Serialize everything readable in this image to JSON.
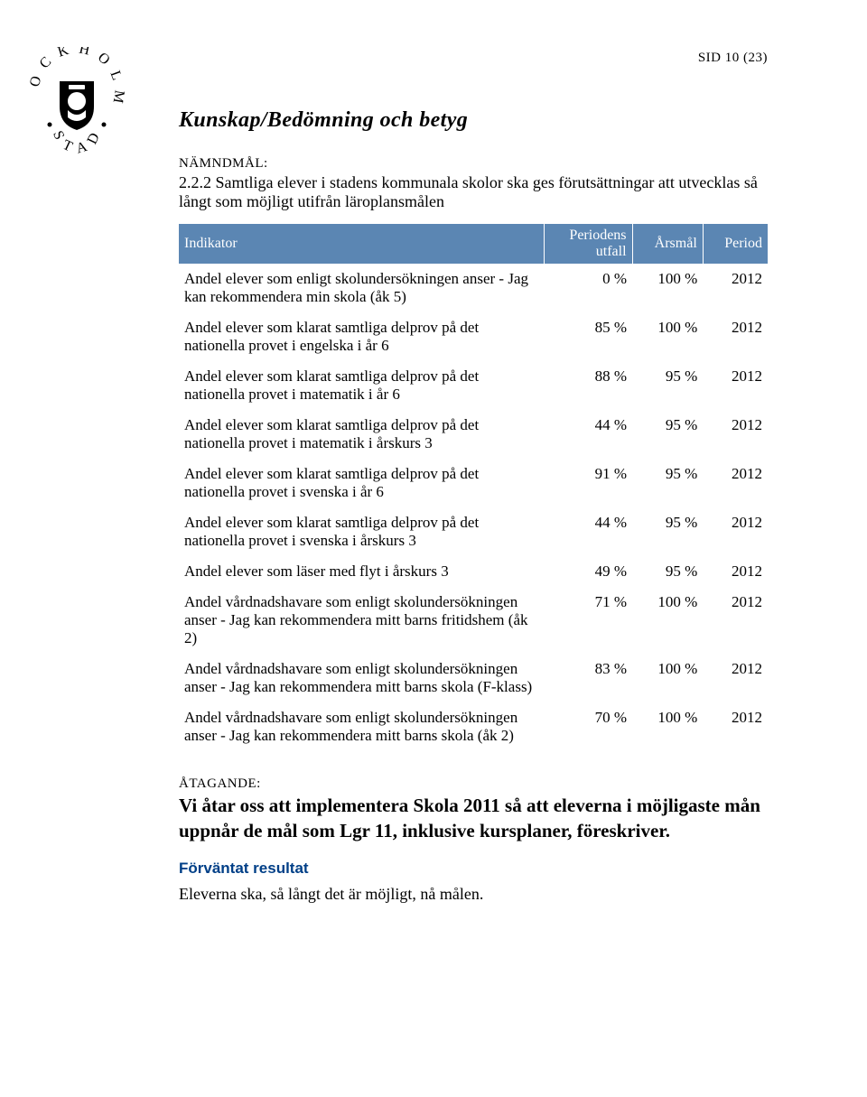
{
  "page_number": "SID 10 (23)",
  "section_title": "Kunskap/Bedömning och betyg",
  "namndmal_label": "NÄMNDMÅL:",
  "namndmal_text": "2.2.2 Samtliga elever i stadens kommunala skolor ska ges förutsättningar att utvecklas så långt som möjligt utifrån läroplansmålen",
  "table": {
    "header_bg": "#5b86b3",
    "header_fg": "#ffffff",
    "columns": [
      "Indikator",
      "Periodens utfall",
      "Årsmål",
      "Period"
    ],
    "rows": [
      {
        "desc": "Andel elever som enligt skolundersökningen anser - Jag kan rekommendera min skola (åk 5)",
        "utfall": "0 %",
        "arsmal": "100 %",
        "period": "2012"
      },
      {
        "desc": "Andel elever som klarat samtliga delprov på det nationella provet i engelska i år 6",
        "utfall": "85 %",
        "arsmal": "100 %",
        "period": "2012"
      },
      {
        "desc": "Andel elever som klarat samtliga delprov på det nationella provet i matematik i år 6",
        "utfall": "88 %",
        "arsmal": "95 %",
        "period": "2012"
      },
      {
        "desc": "Andel elever som klarat samtliga delprov på det nationella provet i matematik i årskurs 3",
        "utfall": "44 %",
        "arsmal": "95 %",
        "period": "2012"
      },
      {
        "desc": "Andel elever som klarat samtliga delprov på det nationella provet i svenska i år 6",
        "utfall": "91 %",
        "arsmal": "95 %",
        "period": "2012"
      },
      {
        "desc": "Andel elever som klarat samtliga delprov på det nationella provet i svenska i årskurs 3",
        "utfall": "44 %",
        "arsmal": "95 %",
        "period": "2012"
      },
      {
        "desc": "Andel elever som läser med flyt i årskurs 3",
        "utfall": "49 %",
        "arsmal": "95 %",
        "period": "2012"
      },
      {
        "desc": "Andel vårdnadshavare som enligt skolundersökningen anser - Jag kan rekommendera mitt barns fritidshem (åk 2)",
        "utfall": "71 %",
        "arsmal": "100 %",
        "period": "2012"
      },
      {
        "desc": "Andel vårdnadshavare som enligt skolundersökningen anser - Jag kan rekommendera mitt barns skola (F-klass)",
        "utfall": "83 %",
        "arsmal": "100 %",
        "period": "2012"
      },
      {
        "desc": "Andel vårdnadshavare som enligt skolundersökningen anser - Jag kan rekommendera mitt barns skola (åk 2)",
        "utfall": "70 %",
        "arsmal": "100 %",
        "period": "2012"
      }
    ]
  },
  "atagande_label": "ÅTAGANDE:",
  "atagande_text": "Vi åtar oss att implementera Skola 2011 så att eleverna i möjligaste mån uppnår de mål som Lgr 11, inklusive kursplaner, föreskriver.",
  "forvantat_heading": "Förväntat resultat",
  "forvantat_body": "Eleverna ska, så långt det är möjligt, nå målen."
}
